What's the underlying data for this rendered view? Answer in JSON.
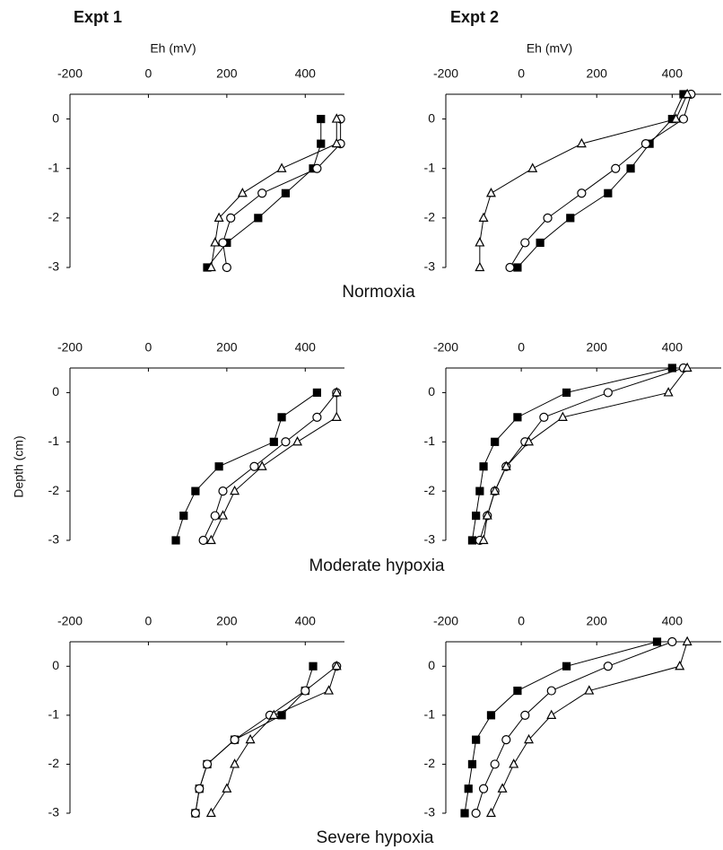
{
  "column_labels": [
    "Expt 1",
    "Expt 2"
  ],
  "row_labels": [
    "Normoxia",
    "Moderate hypoxia",
    "Severe hypoxia"
  ],
  "ylabel": "Depth (cm)",
  "chart_data": [
    {
      "type": "line",
      "xlabel": "Eh (mV)",
      "y": [
        0,
        -0.5,
        -1,
        -1.5,
        -2,
        -2.5,
        -3
      ],
      "series": [
        {
          "marker": "square",
          "color": "#000000",
          "values": [
            440,
            440,
            420,
            350,
            280,
            200,
            150
          ]
        },
        {
          "marker": "circle",
          "color": "#000000",
          "values": [
            490,
            490,
            430,
            290,
            210,
            190,
            200
          ]
        },
        {
          "marker": "triangle",
          "color": "#000000",
          "values": [
            480,
            480,
            340,
            240,
            180,
            170,
            160
          ]
        }
      ],
      "xlim": [
        -200,
        500
      ],
      "xticks": [
        -200,
        0,
        200,
        400
      ],
      "ylim": [
        -3,
        0.5
      ],
      "yticks": [
        0,
        -1,
        -2,
        -3
      ]
    },
    {
      "type": "line",
      "xlabel": "Eh (mV)",
      "y": [
        0.5,
        0,
        -0.5,
        -1,
        -1.5,
        -2,
        -2.5,
        -3
      ],
      "series": [
        {
          "marker": "square",
          "color": "#000000",
          "values": [
            430,
            400,
            340,
            290,
            230,
            130,
            50,
            -10
          ]
        },
        {
          "marker": "circle",
          "color": "#000000",
          "values": [
            450,
            430,
            330,
            250,
            160,
            70,
            10,
            -30
          ]
        },
        {
          "marker": "triangle",
          "color": "#000000",
          "values": [
            440,
            410,
            160,
            30,
            -80,
            -100,
            -110,
            -110
          ]
        }
      ],
      "xlim": [
        -200,
        530
      ],
      "xticks": [
        -200,
        0,
        200,
        400
      ],
      "ylim": [
        -3,
        0.5
      ],
      "yticks": [
        0,
        -1,
        -2,
        -3
      ]
    },
    {
      "type": "line",
      "y": [
        0,
        -0.5,
        -1,
        -1.5,
        -2,
        -2.5,
        -3
      ],
      "series": [
        {
          "marker": "square",
          "color": "#000000",
          "values": [
            430,
            340,
            320,
            180,
            120,
            90,
            70
          ]
        },
        {
          "marker": "circle",
          "color": "#000000",
          "values": [
            480,
            430,
            350,
            270,
            190,
            170,
            140
          ]
        },
        {
          "marker": "triangle",
          "color": "#000000",
          "values": [
            480,
            480,
            380,
            290,
            220,
            190,
            160
          ]
        }
      ],
      "xlim": [
        -200,
        500
      ],
      "xticks": [
        -200,
        0,
        200,
        400
      ],
      "ylim": [
        -3,
        0.5
      ],
      "yticks": [
        0,
        -1,
        -2,
        -3
      ]
    },
    {
      "type": "line",
      "y": [
        0.5,
        0,
        -0.5,
        -1,
        -1.5,
        -2,
        -2.5,
        -3
      ],
      "series": [
        {
          "marker": "square",
          "color": "#000000",
          "values": [
            400,
            120,
            -10,
            -70,
            -100,
            -110,
            -120,
            -130
          ]
        },
        {
          "marker": "circle",
          "color": "#000000",
          "values": [
            430,
            230,
            60,
            10,
            -40,
            -70,
            -90,
            -110
          ]
        },
        {
          "marker": "triangle",
          "color": "#000000",
          "values": [
            440,
            390,
            110,
            20,
            -40,
            -70,
            -90,
            -100
          ]
        }
      ],
      "xlim": [
        -200,
        530
      ],
      "xticks": [
        -200,
        0,
        200,
        400
      ],
      "ylim": [
        -3,
        0.5
      ],
      "yticks": [
        0,
        -1,
        -2,
        -3
      ]
    },
    {
      "type": "line",
      "y": [
        0,
        -0.5,
        -1,
        -1.5,
        -2,
        -2.5,
        -3
      ],
      "series": [
        {
          "marker": "square",
          "color": "#000000",
          "values": [
            420,
            400,
            340,
            220,
            150,
            130,
            120
          ]
        },
        {
          "marker": "circle",
          "color": "#000000",
          "values": [
            480,
            400,
            310,
            220,
            150,
            130,
            120
          ]
        },
        {
          "marker": "triangle",
          "color": "#000000",
          "values": [
            480,
            460,
            320,
            260,
            220,
            200,
            160
          ]
        }
      ],
      "xlim": [
        -200,
        500
      ],
      "xticks": [
        -200,
        0,
        200,
        400
      ],
      "ylim": [
        -3,
        0.5
      ],
      "yticks": [
        0,
        -1,
        -2,
        -3
      ]
    },
    {
      "type": "line",
      "y": [
        0.5,
        0,
        -0.5,
        -1,
        -1.5,
        -2,
        -2.5,
        -3
      ],
      "series": [
        {
          "marker": "square",
          "color": "#000000",
          "values": [
            360,
            120,
            -10,
            -80,
            -120,
            -130,
            -140,
            -150
          ]
        },
        {
          "marker": "circle",
          "color": "#000000",
          "values": [
            400,
            230,
            80,
            10,
            -40,
            -70,
            -100,
            -120
          ]
        },
        {
          "marker": "triangle",
          "color": "#000000",
          "values": [
            440,
            420,
            180,
            80,
            20,
            -20,
            -50,
            -80
          ]
        }
      ],
      "xlim": [
        -200,
        530
      ],
      "xticks": [
        -200,
        0,
        200,
        400
      ],
      "ylim": [
        -3,
        0.5
      ],
      "yticks": [
        0,
        -1,
        -2,
        -3
      ]
    }
  ]
}
